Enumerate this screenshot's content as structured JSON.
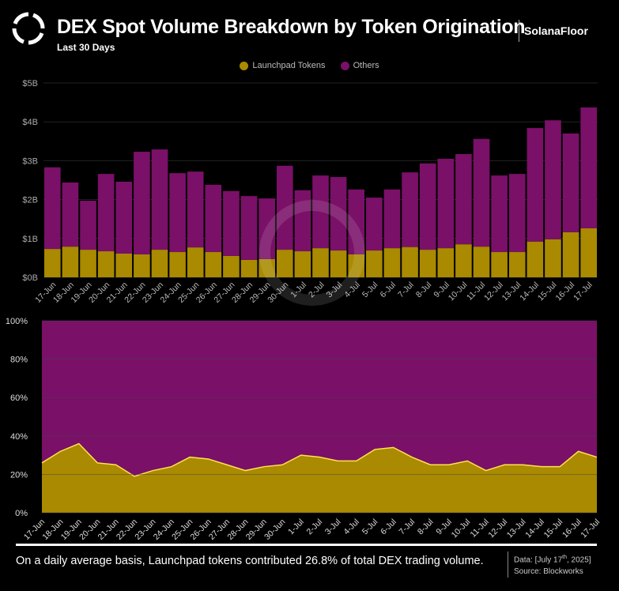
{
  "header": {
    "title": "DEX Spot Volume Breakdown by Token Origination",
    "subtitle": "Last 30 Days",
    "brand": "SolanaFloor"
  },
  "legend": [
    {
      "label": "Launchpad Tokens",
      "color": "#a98a00"
    },
    {
      "label": "Others",
      "color": "#7a1068"
    }
  ],
  "footer": {
    "note": "On a daily average basis, Launchpad tokens contributed 26.8% of total DEX trading volume.",
    "data_prefix": "Data: [July 17",
    "data_sup": "th",
    "data_suffix": ", 2025]",
    "source": "Source: Blockworks"
  },
  "chart_data": [
    {
      "type": "bar",
      "stacked": true,
      "unit": "$B",
      "ylim": [
        0,
        5
      ],
      "yticks": [
        "$0B",
        "$1B",
        "$2B",
        "$3B",
        "$4B",
        "$5B"
      ],
      "grid": true,
      "categories": [
        "17-Jun",
        "18-Jun",
        "19-Jun",
        "20-Jun",
        "21-Jun",
        "22-Jun",
        "23-Jun",
        "24-Jun",
        "25-Jun",
        "26-Jun",
        "27-Jun",
        "28-Jun",
        "29-Jun",
        "30-Jun",
        "1-Jul",
        "2-Jul",
        "3-Jul",
        "4-Jul",
        "5-Jul",
        "6-Jul",
        "7-Jul",
        "8-Jul",
        "9-Jul",
        "10-Jul",
        "11-Jul",
        "12-Jul",
        "13-Jul",
        "14-Jul",
        "15-Jul",
        "16-Jul",
        "17-Jul"
      ],
      "series": [
        {
          "name": "Launchpad Tokens",
          "values": [
            0.73,
            0.79,
            0.71,
            0.67,
            0.61,
            0.59,
            0.71,
            0.65,
            0.77,
            0.65,
            0.55,
            0.45,
            0.47,
            0.71,
            0.67,
            0.75,
            0.69,
            0.59,
            0.69,
            0.75,
            0.78,
            0.71,
            0.75,
            0.85,
            0.79,
            0.65,
            0.65,
            0.92,
            0.98,
            1.16,
            1.26
          ]
        },
        {
          "name": "Others",
          "values": [
            2.1,
            1.65,
            1.26,
            1.99,
            1.85,
            2.64,
            2.58,
            2.03,
            1.95,
            1.73,
            1.67,
            1.64,
            1.56,
            2.16,
            1.57,
            1.87,
            1.89,
            1.67,
            1.36,
            1.51,
            1.92,
            2.22,
            2.3,
            2.32,
            2.77,
            1.97,
            2.01,
            2.92,
            3.06,
            2.54,
            3.11
          ]
        }
      ]
    },
    {
      "type": "area",
      "stacked": true,
      "percent": true,
      "ylim": [
        0,
        100
      ],
      "yticks": [
        "0%",
        "20%",
        "40%",
        "60%",
        "80%",
        "100%"
      ],
      "categories": [
        "17-Jun",
        "18-Jun",
        "19-Jun",
        "20-Jun",
        "21-Jun",
        "22-Jun",
        "23-Jun",
        "24-Jun",
        "25-Jun",
        "26-Jun",
        "27-Jun",
        "28-Jun",
        "29-Jun",
        "30-Jun",
        "1-Jul",
        "2-Jul",
        "3-Jul",
        "4-Jul",
        "5-Jul",
        "6-Jul",
        "7-Jul",
        "8-Jul",
        "9-Jul",
        "10-Jul",
        "11-Jul",
        "12-Jul",
        "13-Jul",
        "14-Jul",
        "15-Jul",
        "16-Jul",
        "17-Jul"
      ],
      "series": [
        {
          "name": "Launchpad Tokens",
          "values": [
            26,
            32,
            36,
            26,
            25,
            19,
            22,
            24,
            29,
            28,
            25,
            22,
            24,
            25,
            30,
            29,
            27,
            27,
            33,
            34,
            29,
            25,
            25,
            27,
            22,
            25,
            25,
            24,
            24,
            32,
            29
          ]
        },
        {
          "name": "Others",
          "values": [
            74,
            68,
            64,
            74,
            75,
            81,
            78,
            76,
            71,
            72,
            75,
            78,
            76,
            75,
            70,
            71,
            73,
            73,
            67,
            66,
            71,
            75,
            75,
            73,
            78,
            75,
            75,
            76,
            76,
            68,
            71
          ]
        }
      ]
    }
  ]
}
